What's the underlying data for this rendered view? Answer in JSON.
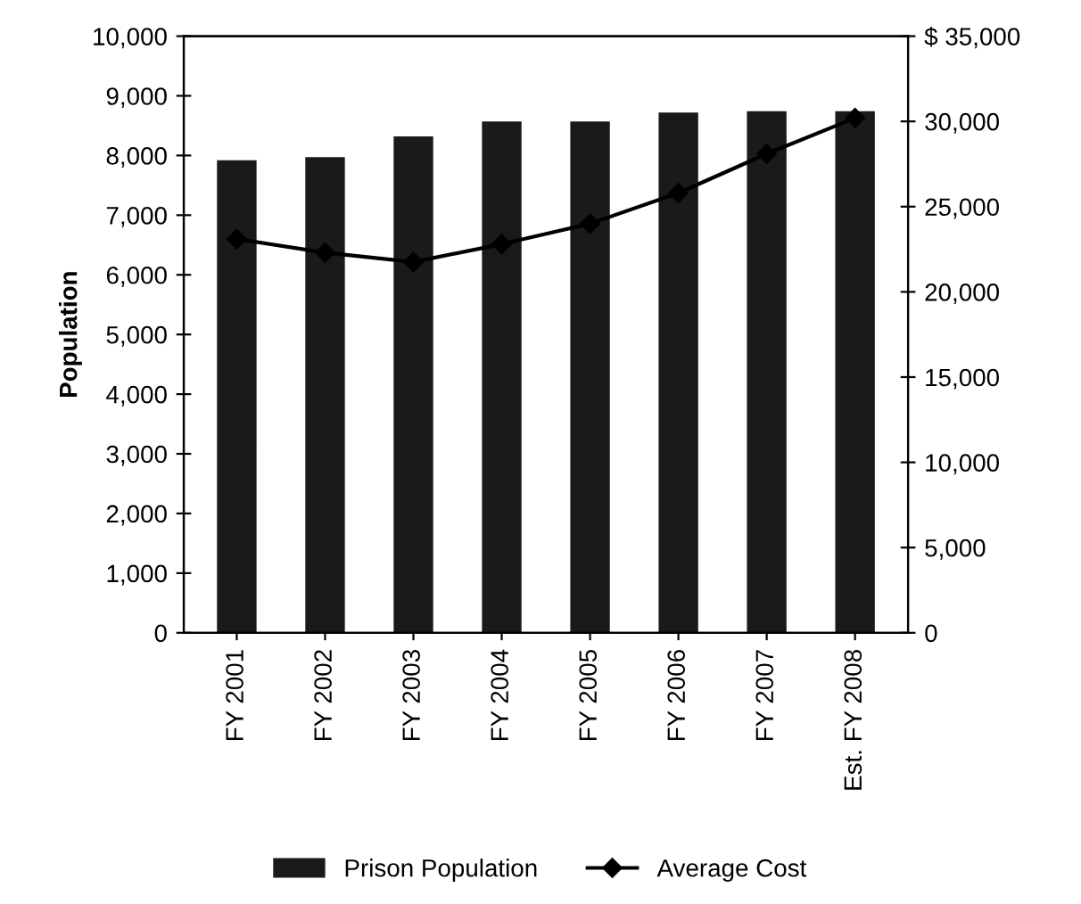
{
  "chart_data": {
    "type": "bar",
    "ylabel": "Population",
    "categories": [
      "FY 2001",
      "FY 2002",
      "FY 2003",
      "FY 2004",
      "FY 2005",
      "FY 2006",
      "FY 2007",
      "Est. FY 2008"
    ],
    "series": [
      {
        "name": "Prison Population",
        "color": "#1a1a1a",
        "values": [
          7900,
          7950,
          8300,
          8550,
          8550,
          8700,
          8720,
          8720
        ]
      },
      {
        "name": "Average Cost",
        "type": "line",
        "axis": "y2",
        "color": "#000000",
        "marker": "diamond",
        "values": [
          23100,
          22300,
          21750,
          22800,
          24000,
          25800,
          28100,
          30200
        ]
      }
    ],
    "ylim": [
      0,
      10000
    ],
    "yticks": [
      {
        "value": 0,
        "label": "0"
      },
      {
        "value": 1000,
        "label": "1,000"
      },
      {
        "value": 2000,
        "label": "2,000"
      },
      {
        "value": 3000,
        "label": "3,000"
      },
      {
        "value": 4000,
        "label": "4,000"
      },
      {
        "value": 5000,
        "label": "5,000"
      },
      {
        "value": 6000,
        "label": "6,000"
      },
      {
        "value": 7000,
        "label": "7,000"
      },
      {
        "value": 8000,
        "label": "8,000"
      },
      {
        "value": 9000,
        "label": "9,000"
      },
      {
        "value": 10000,
        "label": "10,000"
      }
    ],
    "y2lim": [
      0,
      35000
    ],
    "y2ticks": [
      {
        "value": 0,
        "label": "0"
      },
      {
        "value": 5000,
        "label": "5,000"
      },
      {
        "value": 10000,
        "label": "10,000"
      },
      {
        "value": 15000,
        "label": "15,000"
      },
      {
        "value": 20000,
        "label": "20,000"
      },
      {
        "value": 25000,
        "label": "25,000"
      },
      {
        "value": 30000,
        "label": "30,000"
      },
      {
        "value": 35000,
        "label": "$ 35,000"
      }
    ],
    "grid": false,
    "legend": "bottom"
  }
}
